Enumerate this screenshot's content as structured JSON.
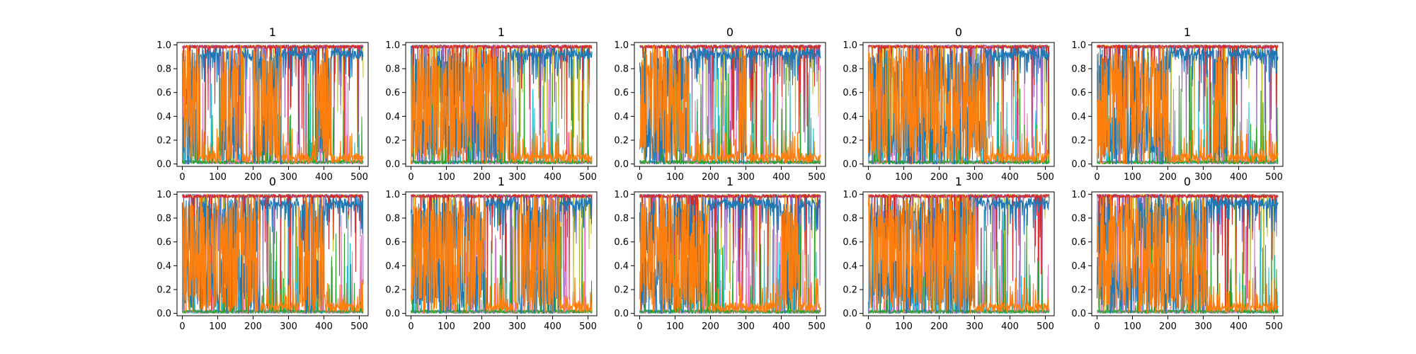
{
  "chart_data": {
    "type": "line",
    "layout": "2x5 grid of subplots",
    "colors": {
      "dominant_series_low": "#ff7f0e",
      "dominant_series_high": "#1f77b4",
      "minor_series": [
        "#17becf",
        "#bcbd22",
        "#e377c2",
        "#9467bd",
        "#2ca02c",
        "#d62728"
      ]
    },
    "shared_axes": {
      "xlim": [
        -15,
        525
      ],
      "ylim": [
        -0.02,
        1.02
      ],
      "x_ticks": [
        0,
        100,
        200,
        300,
        400,
        500
      ],
      "y_ticks": [
        0.0,
        0.2,
        0.4,
        0.6,
        0.8,
        1.0
      ],
      "x_tick_labels": [
        "0",
        "100",
        "200",
        "300",
        "400",
        "500"
      ],
      "y_tick_labels": [
        "0.0",
        "0.2",
        "0.4",
        "0.6",
        "0.8",
        "1.0"
      ],
      "grid": false,
      "legend": "none",
      "x_length": 512
    },
    "panels": [
      {
        "title": "1",
        "orange_high_segments": [
          [
            0,
            50
          ],
          [
            110,
            170
          ],
          [
            200,
            280
          ],
          [
            380,
            420
          ]
        ]
      },
      {
        "title": "1",
        "orange_high_segments": [
          [
            0,
            280
          ]
        ]
      },
      {
        "title": "0",
        "orange_high_segments": [
          [
            0,
            140
          ],
          [
            280,
            300
          ]
        ]
      },
      {
        "title": "0",
        "orange_high_segments": [
          [
            0,
            330
          ]
        ]
      },
      {
        "title": "1",
        "orange_high_segments": [
          [
            0,
            200
          ],
          [
            330,
            370
          ]
        ]
      },
      {
        "title": "0",
        "orange_high_segments": [
          [
            0,
            220
          ],
          [
            330,
            400
          ]
        ]
      },
      {
        "title": "1",
        "orange_high_segments": [
          [
            0,
            210
          ],
          [
            300,
            420
          ]
        ]
      },
      {
        "title": "1",
        "orange_high_segments": [
          [
            0,
            190
          ],
          [
            400,
            450
          ]
        ]
      },
      {
        "title": "1",
        "orange_high_segments": [
          [
            0,
            300
          ]
        ]
      },
      {
        "title": "0",
        "orange_high_segments": [
          [
            0,
            310
          ]
        ]
      }
    ]
  }
}
